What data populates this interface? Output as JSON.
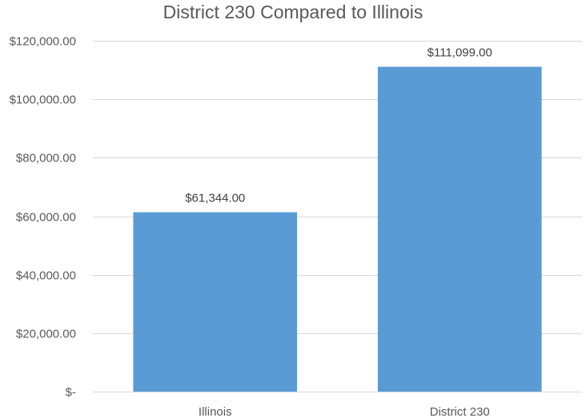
{
  "chart_data": {
    "type": "bar",
    "title": "District 230 Compared to Illinois",
    "categories": [
      "Illinois",
      "District 230"
    ],
    "values": [
      61344,
      111099
    ],
    "value_labels": [
      "$61,344.00",
      "$111,099.00"
    ],
    "ylim": [
      0,
      120000
    ],
    "yticks": [
      0,
      20000,
      40000,
      60000,
      80000,
      100000,
      120000
    ],
    "ytick_labels": [
      "$-",
      "$20,000.00",
      "$40,000.00",
      "$60,000.00",
      "$80,000.00",
      "$100,000.00",
      "$120,000.00"
    ],
    "xlabel": "",
    "ylabel": "",
    "grid": true,
    "legend": "none",
    "bar_color": "#5b9bd5",
    "grid_color": "#d9d9d9"
  }
}
